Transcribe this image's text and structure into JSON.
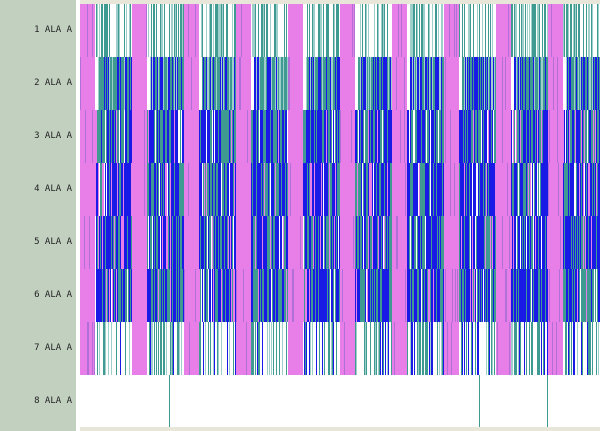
{
  "rows": [
    "1 ALA A",
    "2 ALA A",
    "3 ALA A",
    "4 ALA A",
    "5 ALA A",
    "6 ALA A",
    "7 ALA A",
    "8 ALA A"
  ],
  "colors": {
    "pink": "#e87ee8",
    "blue": "#1a1ae6",
    "teal": "#3f9a92",
    "light_teal": "#9fcfca",
    "white": "#ffffff",
    "label_bg": "#c2d0c0"
  }
}
